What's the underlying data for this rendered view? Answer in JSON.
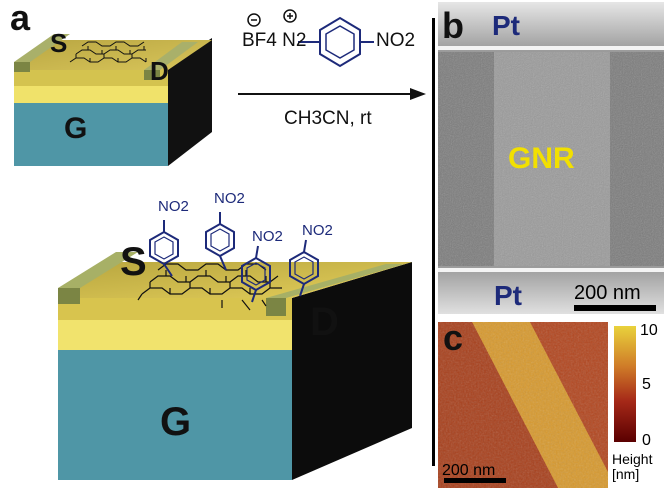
{
  "panel_a": {
    "letter": "a",
    "small_device": {
      "source": "S",
      "drain": "D",
      "gate": "G"
    },
    "large_device": {
      "source": "S",
      "drain": "D",
      "gate": "G"
    },
    "substituents": [
      "NO2",
      "NO2",
      "NO2",
      "NO2"
    ]
  },
  "reaction": {
    "reagent_counterion": "BF4",
    "reagent_group": "N2",
    "reagent_substituent": "NO2",
    "charge_minus": "−",
    "charge_plus": "+",
    "conditions": "CH3CN, rt"
  },
  "panel_b": {
    "letter": "b",
    "top_label": "Pt",
    "bottom_label": "Pt",
    "center_label": "GNR",
    "scale_bar": "200 nm"
  },
  "panel_c": {
    "letter": "c",
    "scale_bar": "200 nm",
    "colorbar_max": "10",
    "colorbar_mid": "5",
    "colorbar_min": "0",
    "colorbar_label": "Height",
    "colorbar_unit": "[nm]"
  },
  "colors": {
    "gate_blue": "#4f96a6",
    "gold": "#e0c24a",
    "electrode": "#8f9a55",
    "molecule": "#1d2a7a",
    "pt_label": "#1d2a7a",
    "gnr_label": "#f2e000"
  }
}
